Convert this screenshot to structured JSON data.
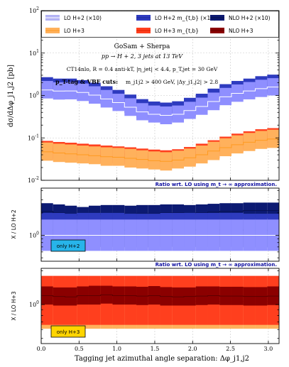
{
  "colors": {
    "lo_h2": "#9c9cff",
    "lo_h3": "#ffb15c",
    "lo_h2_mt": "#2e3bbf",
    "lo_h3_mt": "#ff3f1e",
    "nlo_h2": "#0c1a72",
    "nlo_h3": "#8b0000",
    "badge_h2": "#27b4ea",
    "badge_h3": "#ffd500",
    "ratio_label": "#1010a0"
  },
  "legend": [
    {
      "label": "LO H+2 (×10)",
      "color": "#b3b3f5",
      "line": "#ffffff"
    },
    {
      "label": "LO H+2 m_{t,b} (×10)",
      "color": "#2e3bbf",
      "line": "#1c2a9a"
    },
    {
      "label": "NLO H+2 (×10)",
      "color": "#0c1a72",
      "line": "#050e48"
    },
    {
      "label": "LO H+3",
      "color": "#ffb15c",
      "line": "#ff9a20"
    },
    {
      "label": "LO H+3 m_{t,b}",
      "color": "#ff3f1e",
      "line": "#dd2000"
    },
    {
      "label": "NLO H+3",
      "color": "#8b0000",
      "line": "#5c0000"
    }
  ],
  "annotations": {
    "line1": "GoSam + Sherpa",
    "line2": "pp → H + 2, 3 jets at 13 TeV",
    "line3": "CT14nlo, R = 0.4 anti-kT, |η_jet| < 4.4, p_T,jet = 30 GeV",
    "line4_bold": "p_T-tag & VBF cuts:",
    "line4_rest": "m_j1j2 > 400 GeV, |Δy_j1,j2| > 2.8"
  },
  "ratio_note": "Ratio wrt. LO using m_t → ∞ approximation.",
  "ratio_note2": "Ratio wrt. LO using m_t → ∞ approximation.",
  "badges": {
    "h2": "only H+2",
    "h3": "only H+3"
  },
  "axis_labels": {
    "main_y": "dσ/dΔφ_j1,j2 [pb]",
    "ratio1_y": "X / LO H+2",
    "ratio2_y": "X / LO H+3",
    "x": "Tagging jet azimuthal angle separation:  Δφ_j1,j2"
  },
  "chart_data": {
    "type": "area",
    "x_bins": [
      0.0,
      0.157,
      0.314,
      0.471,
      0.628,
      0.785,
      0.942,
      1.1,
      1.257,
      1.414,
      1.571,
      1.728,
      1.885,
      2.042,
      2.199,
      2.356,
      2.513,
      2.67,
      2.827,
      2.985,
      3.142
    ],
    "xlim": [
      0,
      3.1416
    ],
    "x_ticks": [
      "0.0",
      "0.5",
      "1.0",
      "1.5",
      "2.0",
      "2.5",
      "3.0"
    ],
    "main": {
      "yscale": "log",
      "ylim": [
        0.01,
        100
      ],
      "y_ticks": [
        "10^-2",
        "10^-1",
        "10^0",
        "10^1",
        "10^2"
      ],
      "series": [
        {
          "name": "NLO H+2 (×10)",
          "center": [
            1.75,
            1.6,
            1.65,
            1.5,
            1.3,
            1.05,
            0.85,
            0.65,
            0.5,
            0.45,
            0.43,
            0.46,
            0.55,
            0.7,
            0.9,
            1.15,
            1.4,
            1.6,
            1.8,
            1.95
          ],
          "up": [
            2.4,
            2.2,
            2.25,
            2.05,
            1.8,
            1.5,
            1.2,
            0.95,
            0.75,
            0.65,
            0.6,
            0.65,
            0.8,
            1.0,
            1.25,
            1.6,
            1.95,
            2.2,
            2.45,
            2.6
          ],
          "down": [
            1.25,
            1.15,
            1.2,
            1.1,
            0.95,
            0.75,
            0.6,
            0.47,
            0.37,
            0.33,
            0.31,
            0.34,
            0.4,
            0.5,
            0.65,
            0.83,
            1.0,
            1.15,
            1.3,
            1.4
          ]
        },
        {
          "name": "LO H+2 m_{t,b} (×10)",
          "center": [
            1.6,
            1.5,
            1.5,
            1.4,
            1.2,
            0.98,
            0.8,
            0.62,
            0.48,
            0.42,
            0.4,
            0.43,
            0.52,
            0.65,
            0.85,
            1.1,
            1.32,
            1.5,
            1.7,
            1.85
          ],
          "up": [
            2.7,
            2.5,
            2.5,
            2.3,
            2.0,
            1.65,
            1.35,
            1.05,
            0.82,
            0.72,
            0.68,
            0.73,
            0.88,
            1.1,
            1.45,
            1.85,
            2.2,
            2.5,
            2.85,
            3.1
          ],
          "down": [
            1.0,
            0.93,
            0.93,
            0.87,
            0.75,
            0.61,
            0.5,
            0.39,
            0.3,
            0.26,
            0.25,
            0.27,
            0.32,
            0.41,
            0.53,
            0.68,
            0.82,
            0.93,
            1.06,
            1.15
          ]
        },
        {
          "name": "LO H+2 (×10)",
          "center": [
            1.35,
            1.27,
            1.28,
            1.18,
            1.02,
            0.83,
            0.68,
            0.53,
            0.41,
            0.36,
            0.34,
            0.36,
            0.44,
            0.55,
            0.72,
            0.93,
            1.12,
            1.28,
            1.45,
            1.58
          ],
          "up": [
            2.2,
            2.05,
            2.08,
            1.92,
            1.65,
            1.35,
            1.1,
            0.86,
            0.66,
            0.58,
            0.55,
            0.58,
            0.71,
            0.89,
            1.17,
            1.51,
            1.82,
            2.08,
            2.35,
            2.56
          ],
          "down": [
            0.85,
            0.8,
            0.81,
            0.74,
            0.64,
            0.52,
            0.43,
            0.33,
            0.26,
            0.23,
            0.21,
            0.23,
            0.28,
            0.35,
            0.45,
            0.59,
            0.71,
            0.81,
            0.92,
            1.0
          ]
        },
        {
          "name": "NLO H+3",
          "center": [
            0.056,
            0.052,
            0.05,
            0.048,
            0.046,
            0.044,
            0.042,
            0.04,
            0.037,
            0.035,
            0.033,
            0.035,
            0.04,
            0.048,
            0.058,
            0.07,
            0.082,
            0.093,
            0.104,
            0.112
          ],
          "up": [
            0.068,
            0.063,
            0.061,
            0.058,
            0.056,
            0.053,
            0.051,
            0.048,
            0.045,
            0.042,
            0.04,
            0.043,
            0.049,
            0.058,
            0.07,
            0.085,
            0.1,
            0.113,
            0.126,
            0.136
          ],
          "down": [
            0.047,
            0.044,
            0.042,
            0.04,
            0.039,
            0.037,
            0.035,
            0.034,
            0.031,
            0.029,
            0.028,
            0.03,
            0.034,
            0.041,
            0.049,
            0.059,
            0.069,
            0.078,
            0.087,
            0.094
          ]
        },
        {
          "name": "LO H+3 m_{t,b}",
          "center": [
            0.05,
            0.047,
            0.045,
            0.043,
            0.041,
            0.039,
            0.037,
            0.035,
            0.033,
            0.031,
            0.03,
            0.032,
            0.036,
            0.043,
            0.052,
            0.063,
            0.074,
            0.084,
            0.094,
            0.1
          ],
          "up": [
            0.085,
            0.08,
            0.077,
            0.073,
            0.07,
            0.066,
            0.063,
            0.06,
            0.056,
            0.053,
            0.051,
            0.054,
            0.061,
            0.073,
            0.088,
            0.107,
            0.126,
            0.143,
            0.16,
            0.17
          ],
          "down": [
            0.032,
            0.03,
            0.029,
            0.028,
            0.026,
            0.025,
            0.024,
            0.022,
            0.021,
            0.02,
            0.019,
            0.02,
            0.023,
            0.027,
            0.033,
            0.04,
            0.047,
            0.053,
            0.06,
            0.064
          ]
        },
        {
          "name": "LO H+3",
          "center": [
            0.047,
            0.044,
            0.042,
            0.04,
            0.038,
            0.036,
            0.035,
            0.033,
            0.031,
            0.029,
            0.028,
            0.03,
            0.034,
            0.04,
            0.049,
            0.059,
            0.069,
            0.079,
            0.088,
            0.094
          ],
          "up": [
            0.078,
            0.073,
            0.07,
            0.066,
            0.063,
            0.06,
            0.058,
            0.055,
            0.051,
            0.048,
            0.046,
            0.05,
            0.056,
            0.066,
            0.081,
            0.098,
            0.115,
            0.131,
            0.146,
            0.156
          ],
          "down": [
            0.029,
            0.027,
            0.026,
            0.025,
            0.024,
            0.022,
            0.022,
            0.02,
            0.019,
            0.018,
            0.017,
            0.019,
            0.021,
            0.025,
            0.03,
            0.037,
            0.043,
            0.049,
            0.055,
            0.058
          ]
        }
      ]
    },
    "ratio_h2": {
      "yscale": "log",
      "y_ticks": [
        "10^0"
      ],
      "series": [
        {
          "name": "NLO H+2 (×10)",
          "center": [
            2.1,
            2.0,
            1.9,
            1.85,
            1.9,
            1.95,
            1.95,
            1.9,
            1.95,
            1.95,
            2.0,
            2.0,
            1.95,
            2.0,
            2.05,
            2.1,
            2.1,
            2.15,
            2.15,
            2.15
          ],
          "up": [
            2.7,
            2.6,
            2.5,
            2.4,
            2.5,
            2.55,
            2.55,
            2.5,
            2.55,
            2.55,
            2.6,
            2.6,
            2.55,
            2.6,
            2.65,
            2.7,
            2.7,
            2.75,
            2.75,
            2.75
          ],
          "down": [
            1.65,
            1.6,
            1.45,
            1.45,
            1.5,
            1.55,
            1.55,
            1.5,
            1.55,
            1.55,
            1.6,
            1.6,
            1.55,
            1.6,
            1.6,
            1.65,
            1.65,
            1.7,
            1.7,
            1.7
          ]
        },
        {
          "name": "LO H+2 m_{t,b} (×10)",
          "center": [
            1.18,
            1.18,
            1.17,
            1.18,
            1.18,
            1.18,
            1.18,
            1.17,
            1.17,
            1.17,
            1.18,
            1.19,
            1.18,
            1.18,
            1.18,
            1.18,
            1.18,
            1.17,
            1.17,
            1.17
          ],
          "up": [
            2.0,
            2.0,
            1.95,
            2.0,
            2.0,
            2.0,
            2.0,
            1.95,
            1.95,
            1.95,
            2.0,
            2.0,
            2.0,
            2.0,
            2.0,
            2.0,
            2.0,
            1.95,
            1.95,
            1.95
          ],
          "down": [
            0.7,
            0.7,
            0.69,
            0.7,
            0.7,
            0.7,
            0.7,
            0.69,
            0.69,
            0.69,
            0.7,
            0.71,
            0.7,
            0.7,
            0.7,
            0.7,
            0.7,
            0.69,
            0.69,
            0.69
          ]
        },
        {
          "name": "LO H+2 (×10)",
          "center": [
            1,
            1,
            1,
            1,
            1,
            1,
            1,
            1,
            1,
            1,
            1,
            1,
            1,
            1,
            1,
            1,
            1,
            1,
            1,
            1
          ],
          "up": [
            1.63,
            1.63,
            1.63,
            1.63,
            1.63,
            1.63,
            1.63,
            1.63,
            1.63,
            1.63,
            1.63,
            1.63,
            1.63,
            1.63,
            1.63,
            1.63,
            1.63,
            1.63,
            1.63,
            1.63
          ],
          "down": [
            0.62,
            0.62,
            0.62,
            0.62,
            0.62,
            0.62,
            0.62,
            0.62,
            0.62,
            0.62,
            0.62,
            0.62,
            0.62,
            0.62,
            0.62,
            0.62,
            0.62,
            0.62,
            0.62,
            0.62
          ]
        }
      ]
    },
    "ratio_h3": {
      "yscale": "log",
      "y_ticks": [
        "10^0"
      ],
      "series": [
        {
          "name": "LO H+3",
          "center": [
            1,
            1,
            1,
            1,
            1,
            1,
            1,
            1,
            1,
            1,
            1,
            1,
            1,
            1,
            1,
            1,
            1,
            1,
            1,
            1
          ],
          "up": [
            1.66,
            1.66,
            1.66,
            1.66,
            1.66,
            1.66,
            1.66,
            1.66,
            1.66,
            1.66,
            1.66,
            1.66,
            1.66,
            1.66,
            1.66,
            1.66,
            1.66,
            1.66,
            1.66,
            1.66
          ],
          "down": [
            0.61,
            0.61,
            0.61,
            0.61,
            0.61,
            0.61,
            0.61,
            0.61,
            0.61,
            0.61,
            0.61,
            0.61,
            0.61,
            0.61,
            0.61,
            0.61,
            0.61,
            0.61,
            0.61,
            0.61
          ]
        },
        {
          "name": "LO H+3 m_{t,b}",
          "center": [
            1.07,
            1.07,
            1.07,
            1.07,
            1.08,
            1.08,
            1.07,
            1.07,
            1.07,
            1.08,
            1.07,
            1.07,
            1.07,
            1.07,
            1.07,
            1.07,
            1.07,
            1.07,
            1.07,
            1.07
          ],
          "up": [
            1.8,
            1.8,
            1.8,
            1.8,
            1.8,
            1.8,
            1.8,
            1.8,
            1.8,
            1.8,
            1.8,
            1.8,
            1.8,
            1.8,
            1.8,
            1.8,
            1.8,
            1.8,
            1.8,
            1.8
          ],
          "down": [
            0.66,
            0.66,
            0.66,
            0.66,
            0.66,
            0.66,
            0.66,
            0.66,
            0.66,
            0.66,
            0.66,
            0.66,
            0.66,
            0.66,
            0.66,
            0.66,
            0.66,
            0.66,
            0.66,
            0.66
          ]
        },
        {
          "name": "NLO H+3",
          "center": [
            1.2,
            1.18,
            1.17,
            1.2,
            1.2,
            1.22,
            1.2,
            1.2,
            1.19,
            1.2,
            1.18,
            1.17,
            1.18,
            1.19,
            1.2,
            1.19,
            1.19,
            1.18,
            1.18,
            1.19
          ],
          "up": [
            1.45,
            1.42,
            1.42,
            1.45,
            1.47,
            1.47,
            1.45,
            1.45,
            1.44,
            1.46,
            1.43,
            1.42,
            1.42,
            1.45,
            1.45,
            1.44,
            1.44,
            1.43,
            1.43,
            1.45
          ],
          "down": [
            1.0,
            0.98,
            0.98,
            1.0,
            1.0,
            1.02,
            1.0,
            1.0,
            0.99,
            1.0,
            0.98,
            0.98,
            0.98,
            0.99,
            1.0,
            0.99,
            0.99,
            0.98,
            0.98,
            0.99
          ]
        }
      ]
    }
  }
}
